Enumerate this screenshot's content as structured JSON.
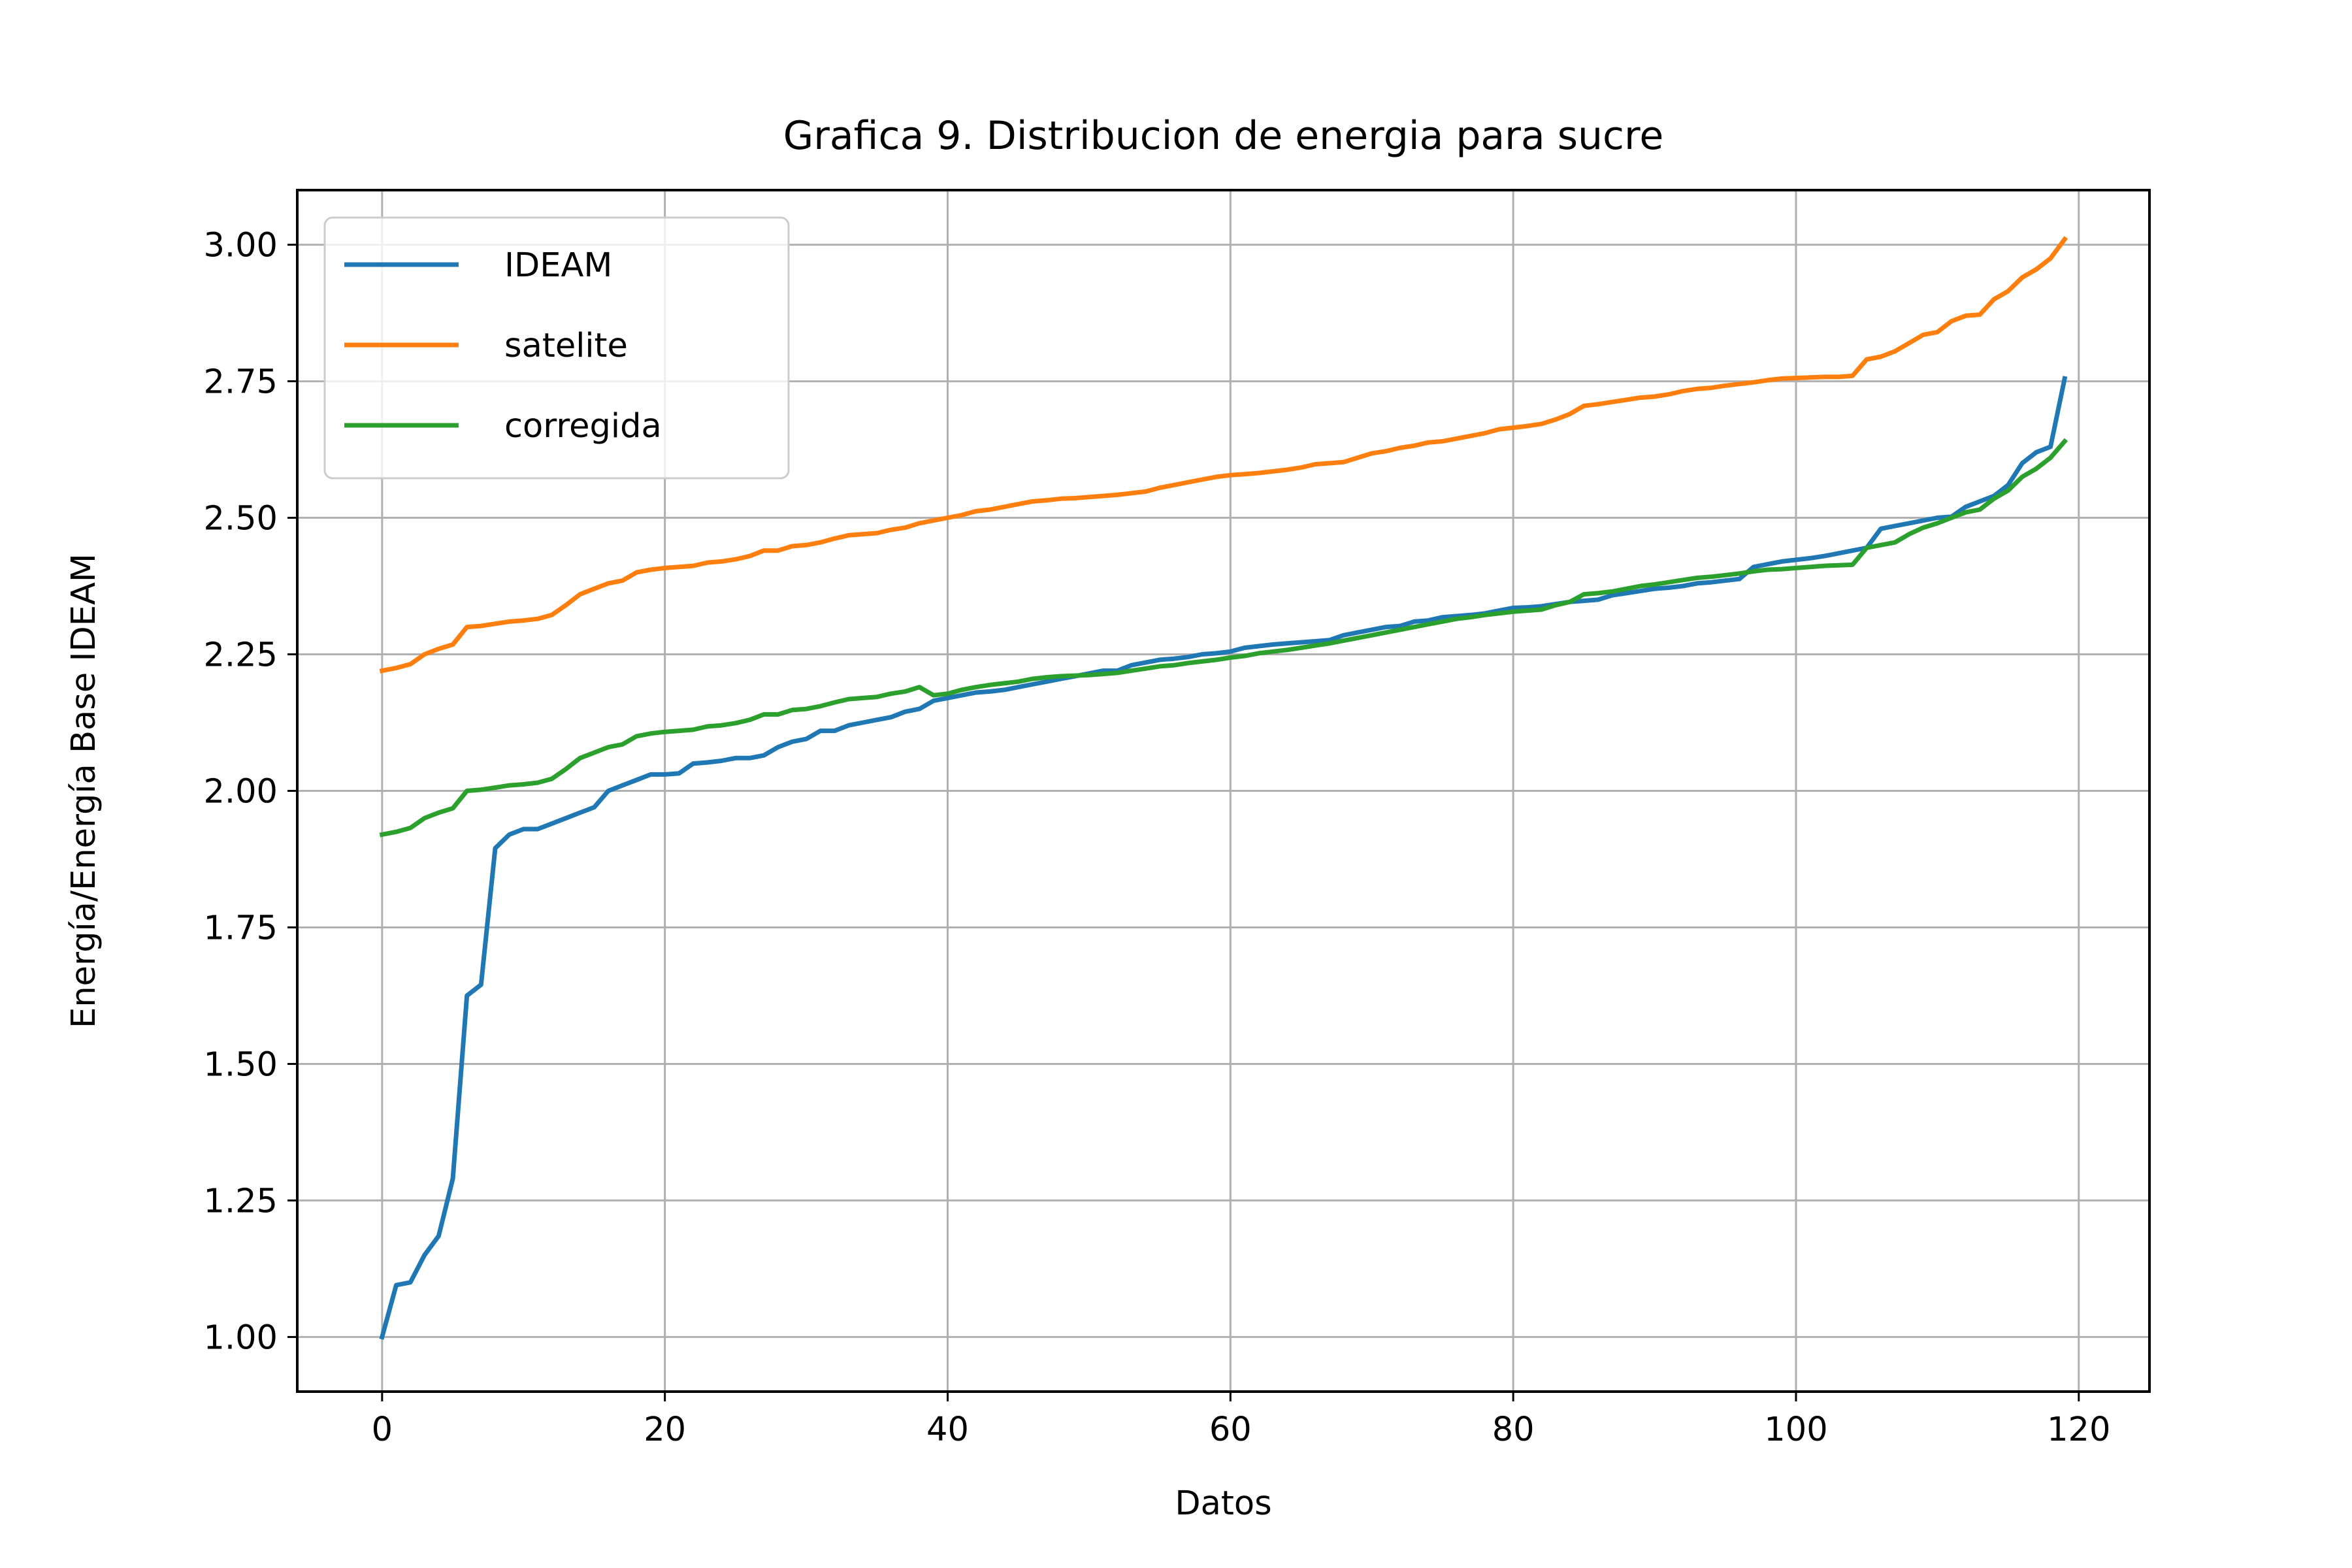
{
  "chart_data": {
    "type": "line",
    "title": "Grafica 9. Distribucion de energia para sucre",
    "xlabel": "Datos",
    "ylabel": "Energía/Energía Base IDEAM",
    "xlim": [
      -6,
      125
    ],
    "ylim": [
      0.9,
      3.1
    ],
    "xticks": [
      0,
      20,
      40,
      60,
      80,
      100,
      120
    ],
    "yticks": [
      1.0,
      1.25,
      1.5,
      1.75,
      2.0,
      2.25,
      2.5,
      2.75,
      3.0
    ],
    "xtick_labels": [
      "0",
      "20",
      "40",
      "60",
      "80",
      "100",
      "120"
    ],
    "ytick_labels": [
      "1.00",
      "1.25",
      "1.50",
      "1.75",
      "2.00",
      "2.25",
      "2.50",
      "2.75",
      "3.00"
    ],
    "grid": true,
    "legend_position": "upper-left",
    "series": [
      {
        "name": "IDEAM",
        "color": "#1f77b4",
        "values": [
          1.0,
          1.095,
          1.1,
          1.15,
          1.185,
          1.29,
          1.625,
          1.645,
          1.895,
          1.92,
          1.93,
          1.93,
          1.94,
          1.95,
          1.96,
          1.97,
          2.0,
          2.01,
          2.02,
          2.03,
          2.03,
          2.032,
          2.05,
          2.052,
          2.055,
          2.06,
          2.06,
          2.065,
          2.08,
          2.09,
          2.095,
          2.11,
          2.11,
          2.12,
          2.125,
          2.13,
          2.135,
          2.145,
          2.15,
          2.165,
          2.17,
          2.175,
          2.18,
          2.182,
          2.185,
          2.19,
          2.195,
          2.2,
          2.205,
          2.21,
          2.215,
          2.22,
          2.22,
          2.23,
          2.235,
          2.24,
          2.242,
          2.245,
          2.25,
          2.252,
          2.255,
          2.262,
          2.265,
          2.268,
          2.27,
          2.272,
          2.274,
          2.276,
          2.285,
          2.29,
          2.295,
          2.3,
          2.302,
          2.31,
          2.312,
          2.318,
          2.32,
          2.322,
          2.325,
          2.33,
          2.335,
          2.336,
          2.338,
          2.342,
          2.346,
          2.348,
          2.35,
          2.358,
          2.362,
          2.366,
          2.37,
          2.372,
          2.375,
          2.38,
          2.382,
          2.385,
          2.388,
          2.41,
          2.415,
          2.42,
          2.423,
          2.426,
          2.43,
          2.435,
          2.44,
          2.445,
          2.48,
          2.485,
          2.49,
          2.495,
          2.5,
          2.502,
          2.52,
          2.53,
          2.54,
          2.56,
          2.6,
          2.62,
          2.63,
          2.755
        ]
      },
      {
        "name": "satelite",
        "color": "#ff7f0e",
        "values": [
          2.22,
          2.225,
          2.232,
          2.25,
          2.26,
          2.268,
          2.3,
          2.302,
          2.306,
          2.31,
          2.312,
          2.315,
          2.322,
          2.34,
          2.36,
          2.37,
          2.38,
          2.385,
          2.4,
          2.405,
          2.408,
          2.41,
          2.412,
          2.418,
          2.42,
          2.424,
          2.43,
          2.44,
          2.44,
          2.448,
          2.45,
          2.455,
          2.462,
          2.468,
          2.47,
          2.472,
          2.478,
          2.482,
          2.49,
          2.495,
          2.5,
          2.505,
          2.512,
          2.515,
          2.52,
          2.525,
          2.53,
          2.532,
          2.535,
          2.536,
          2.538,
          2.54,
          2.542,
          2.545,
          2.548,
          2.555,
          2.56,
          2.565,
          2.57,
          2.575,
          2.578,
          2.58,
          2.582,
          2.585,
          2.588,
          2.592,
          2.598,
          2.6,
          2.602,
          2.61,
          2.618,
          2.622,
          2.628,
          2.632,
          2.638,
          2.64,
          2.645,
          2.65,
          2.655,
          2.662,
          2.665,
          2.668,
          2.672,
          2.68,
          2.69,
          2.705,
          2.708,
          2.712,
          2.716,
          2.72,
          2.722,
          2.726,
          2.732,
          2.736,
          2.738,
          2.742,
          2.745,
          2.748,
          2.752,
          2.755,
          2.756,
          2.757,
          2.758,
          2.758,
          2.76,
          2.79,
          2.795,
          2.805,
          2.82,
          2.835,
          2.84,
          2.86,
          2.87,
          2.872,
          2.9,
          2.915,
          2.94,
          2.955,
          2.975,
          3.01
        ]
      },
      {
        "name": "corregida",
        "color": "#2ca02c",
        "values": [
          1.92,
          1.925,
          1.932,
          1.95,
          1.96,
          1.968,
          2.0,
          2.002,
          2.006,
          2.01,
          2.012,
          2.015,
          2.022,
          2.04,
          2.06,
          2.07,
          2.08,
          2.085,
          2.1,
          2.105,
          2.108,
          2.11,
          2.112,
          2.118,
          2.12,
          2.124,
          2.13,
          2.14,
          2.14,
          2.148,
          2.15,
          2.155,
          2.162,
          2.168,
          2.17,
          2.172,
          2.178,
          2.182,
          2.19,
          2.175,
          2.178,
          2.185,
          2.19,
          2.194,
          2.197,
          2.2,
          2.205,
          2.208,
          2.21,
          2.211,
          2.212,
          2.214,
          2.216,
          2.22,
          2.224,
          2.228,
          2.23,
          2.234,
          2.237,
          2.24,
          2.244,
          2.247,
          2.252,
          2.255,
          2.258,
          2.262,
          2.266,
          2.27,
          2.275,
          2.28,
          2.285,
          2.29,
          2.295,
          2.3,
          2.305,
          2.31,
          2.315,
          2.318,
          2.322,
          2.325,
          2.328,
          2.33,
          2.332,
          2.34,
          2.346,
          2.36,
          2.362,
          2.365,
          2.37,
          2.375,
          2.378,
          2.382,
          2.386,
          2.39,
          2.392,
          2.395,
          2.398,
          2.402,
          2.405,
          2.406,
          2.408,
          2.41,
          2.412,
          2.413,
          2.414,
          2.445,
          2.45,
          2.455,
          2.47,
          2.482,
          2.49,
          2.5,
          2.51,
          2.515,
          2.535,
          2.55,
          2.575,
          2.59,
          2.61,
          2.64
        ]
      }
    ]
  }
}
